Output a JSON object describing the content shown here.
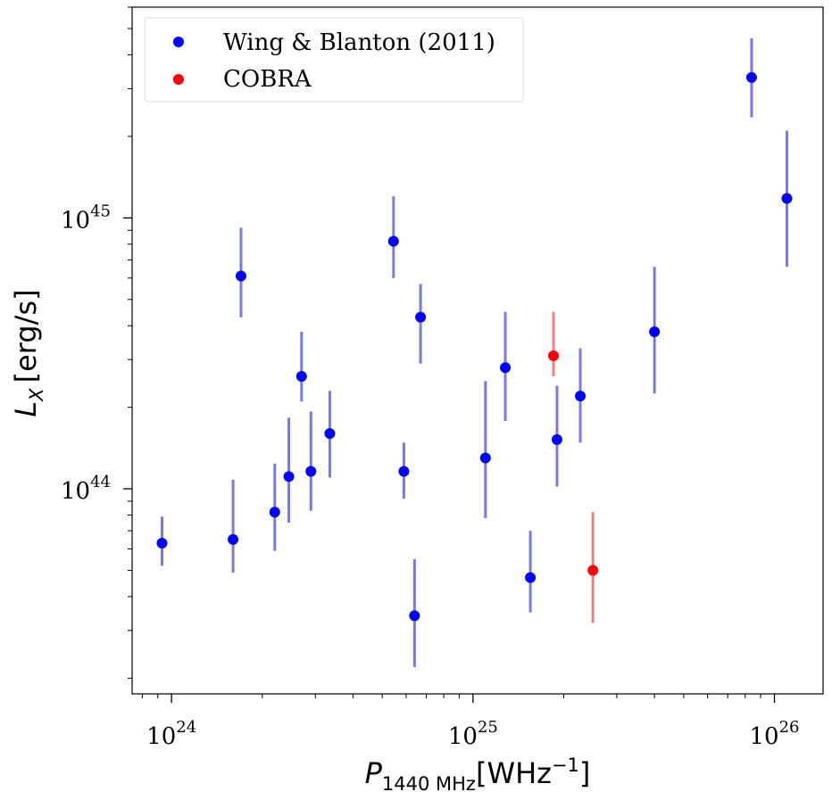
{
  "chart_data": {
    "type": "scatter",
    "x_scale": "log",
    "y_scale": "log",
    "xlim": [
      7.4e+23,
      1.45e+26
    ],
    "ylim": [
      1.75e+43,
      6e+45
    ],
    "xlabel": {
      "base": "P",
      "subscript": "1440 MHz",
      "unit": "[WHz",
      "unit_exp": "−1",
      "unit_close": "]"
    },
    "ylabel": {
      "base": "L",
      "subscript": "X",
      "unit": "[erg/s]"
    },
    "x_ticks": [
      {
        "base": "10",
        "exp": "24",
        "value": 1e+24
      },
      {
        "base": "10",
        "exp": "25",
        "value": 1e+25
      },
      {
        "base": "10",
        "exp": "26",
        "value": 1e+26
      }
    ],
    "y_ticks": [
      {
        "base": "10",
        "exp": "44",
        "value": 1e+44
      },
      {
        "base": "10",
        "exp": "45",
        "value": 1e+45
      }
    ],
    "grid": false,
    "legend_position": "top-left",
    "series": [
      {
        "name": "Wing & Blanton (2011)",
        "color": "#0000ff",
        "errorbar_color": "#7777ee",
        "points": [
          {
            "x": 9.3e+23,
            "y": 6.3e+43,
            "ylo": 5.2e+43,
            "yhi": 7.9e+43
          },
          {
            "x": 1.6e+24,
            "y": 6.5e+43,
            "ylo": 4.9e+43,
            "yhi": 1.08e+44
          },
          {
            "x": 1.7e+24,
            "y": 6.1e+44,
            "ylo": 4.3e+44,
            "yhi": 9.2e+44
          },
          {
            "x": 2.2e+24,
            "y": 8.2e+43,
            "ylo": 5.9e+43,
            "yhi": 1.24e+44
          },
          {
            "x": 2.45e+24,
            "y": 1.11e+44,
            "ylo": 7.5e+43,
            "yhi": 1.83e+44
          },
          {
            "x": 2.7e+24,
            "y": 2.6e+44,
            "ylo": 2.1e+44,
            "yhi": 3.8e+44
          },
          {
            "x": 2.9e+24,
            "y": 1.16e+44,
            "ylo": 8.3e+43,
            "yhi": 1.93e+44
          },
          {
            "x": 3.35e+24,
            "y": 1.6e+44,
            "ylo": 1.1e+44,
            "yhi": 2.3e+44
          },
          {
            "x": 5.45e+24,
            "y": 8.2e+44,
            "ylo": 6e+44,
            "yhi": 1.2e+45
          },
          {
            "x": 5.9e+24,
            "y": 1.16e+44,
            "ylo": 9.2e+43,
            "yhi": 1.48e+44
          },
          {
            "x": 6.4e+24,
            "y": 3.4e+43,
            "ylo": 2.2e+43,
            "yhi": 5.5e+43
          },
          {
            "x": 6.7e+24,
            "y": 4.3e+44,
            "ylo": 2.9e+44,
            "yhi": 5.7e+44
          },
          {
            "x": 1.1e+25,
            "y": 1.3e+44,
            "ylo": 7.8e+43,
            "yhi": 2.5e+44
          },
          {
            "x": 1.28e+25,
            "y": 2.8e+44,
            "ylo": 1.78e+44,
            "yhi": 4.5e+44
          },
          {
            "x": 1.55e+25,
            "y": 4.7e+43,
            "ylo": 3.5e+43,
            "yhi": 7e+43
          },
          {
            "x": 1.9e+25,
            "y": 1.52e+44,
            "ylo": 1.02e+44,
            "yhi": 2.4e+44
          },
          {
            "x": 2.27e+25,
            "y": 2.2e+44,
            "ylo": 1.48e+44,
            "yhi": 3.3e+44
          },
          {
            "x": 4e+25,
            "y": 3.8e+44,
            "ylo": 2.25e+44,
            "yhi": 6.6e+44
          },
          {
            "x": 8.4e+25,
            "y": 3.3e+45,
            "ylo": 2.35e+45,
            "yhi": 4.6e+45
          },
          {
            "x": 1.1e+26,
            "y": 1.18e+45,
            "ylo": 6.6e+44,
            "yhi": 2.1e+45
          }
        ]
      },
      {
        "name": "COBRA",
        "color": "#ff0000",
        "errorbar_color": "#f08080",
        "points": [
          {
            "x": 1.85e+25,
            "y": 3.1e+44,
            "ylo": 2.6e+44,
            "yhi": 4.5e+44
          },
          {
            "x": 2.5e+25,
            "y": 5e+43,
            "ylo": 3.2e+43,
            "yhi": 8.2e+43
          }
        ]
      }
    ]
  }
}
